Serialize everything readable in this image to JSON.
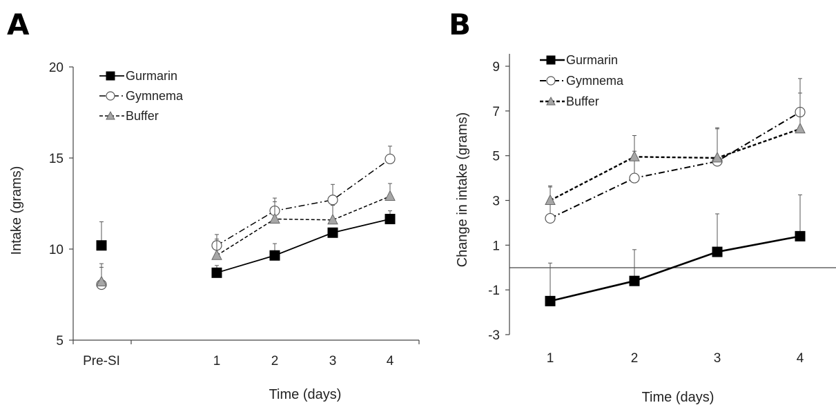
{
  "colors": {
    "gurmarin": "#000000",
    "gymnema": "#ffffff",
    "buffer": "#a6a6a6",
    "axis": "#444444"
  },
  "chart_data": [
    {
      "panel": "A",
      "type": "line",
      "xlabel": "Time (days)",
      "ylabel": "Intake (grams)",
      "categories": [
        "Pre-SI",
        "",
        "1",
        "2",
        "3",
        "4"
      ],
      "ylim": [
        5,
        20
      ],
      "yticks": [
        5,
        10,
        15,
        20
      ],
      "legend_position": "top-left",
      "series": [
        {
          "name": "Gurmarin",
          "marker": "square",
          "line": "solid",
          "values": [
            10.2,
            null,
            8.7,
            9.65,
            10.9,
            11.65
          ],
          "errors": [
            1.3,
            null,
            0.4,
            0.65,
            0.25,
            0.45
          ],
          "connect_from_index": 2
        },
        {
          "name": "Gymnema",
          "marker": "circle",
          "line": "dashdot",
          "values": [
            8.05,
            null,
            10.2,
            12.1,
            12.7,
            14.95
          ],
          "errors": [
            1.15,
            null,
            0.6,
            0.7,
            0.85,
            0.7
          ],
          "connect_from_index": 2
        },
        {
          "name": "Buffer",
          "marker": "triangle",
          "line": "dashed",
          "values": [
            8.2,
            null,
            9.65,
            11.65,
            11.6,
            12.9
          ],
          "errors": [
            0.8,
            null,
            0.9,
            0.95,
            0.8,
            0.7
          ],
          "connect_from_index": 2
        }
      ]
    },
    {
      "panel": "B",
      "type": "line",
      "xlabel": "Time (days)",
      "ylabel": "Change in intake (grams)",
      "categories": [
        "1",
        "2",
        "3",
        "4"
      ],
      "ylim": [
        -3,
        9
      ],
      "yticks": [
        -3,
        -1,
        1,
        3,
        5,
        7,
        9
      ],
      "zero_line": true,
      "legend_position": "top-left",
      "series": [
        {
          "name": "Gurmarin",
          "marker": "square",
          "line": "solid",
          "values": [
            -1.5,
            -0.6,
            0.7,
            1.4
          ],
          "errors": [
            1.7,
            1.4,
            1.7,
            1.85
          ],
          "connect_from_index": 0
        },
        {
          "name": "Gymnema",
          "marker": "circle",
          "line": "dashdot",
          "values": [
            2.2,
            4.0,
            4.75,
            6.95
          ],
          "errors": [
            1.4,
            1.2,
            1.45,
            1.5
          ],
          "connect_from_index": 0
        },
        {
          "name": "Buffer",
          "marker": "triangle",
          "line": "dashed",
          "values": [
            3.0,
            4.95,
            4.9,
            6.2
          ],
          "errors": [
            0.65,
            0.95,
            1.35,
            1.6
          ],
          "connect_from_index": 0
        }
      ]
    }
  ]
}
